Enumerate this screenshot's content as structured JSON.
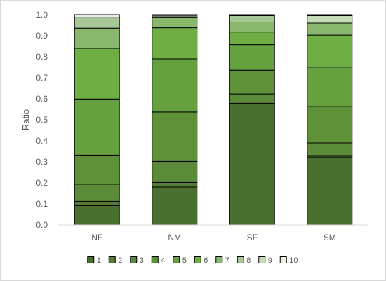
{
  "chart_data": {
    "type": "bar",
    "stacked": true,
    "title": "",
    "xlabel": "",
    "ylabel": "Ratio",
    "ylim": [
      0,
      1.0
    ],
    "yticks": [
      "0.0",
      "0.1",
      "0.2",
      "0.3",
      "0.4",
      "0.5",
      "0.6",
      "0.7",
      "0.8",
      "0.9",
      "1.0"
    ],
    "categories": [
      "NF",
      "NM",
      "SF",
      "SM"
    ],
    "grid": false,
    "legend": "bottom",
    "series": [
      {
        "name": "1",
        "color": "#4a7030",
        "values": [
          0.092,
          0.18,
          0.578,
          0.323
        ]
      },
      {
        "name": "2",
        "color": "#537b35",
        "values": [
          0.02,
          0.022,
          0.007,
          0.007
        ]
      },
      {
        "name": "3",
        "color": "#5b8a38",
        "values": [
          0.082,
          0.1,
          0.038,
          0.06
        ]
      },
      {
        "name": "4",
        "color": "#5f9139",
        "values": [
          0.138,
          0.235,
          0.113,
          0.173
        ]
      },
      {
        "name": "5",
        "color": "#66a13f",
        "values": [
          0.267,
          0.253,
          0.122,
          0.188
        ]
      },
      {
        "name": "6",
        "color": "#6fae45",
        "values": [
          0.241,
          0.148,
          0.06,
          0.152
        ]
      },
      {
        "name": "7",
        "color": "#89b76d",
        "values": [
          0.096,
          0.05,
          0.047,
          0.057
        ]
      },
      {
        "name": "8",
        "color": "#a7c896",
        "values": [
          0.05,
          0.0,
          0.03,
          0.0
        ]
      },
      {
        "name": "9",
        "color": "#c6dcb9",
        "values": [
          0.0,
          0.006,
          0.005,
          0.035
        ]
      },
      {
        "name": "10",
        "color": "#e9f1e3",
        "values": [
          0.014,
          0.006,
          0.0,
          0.005
        ]
      }
    ]
  }
}
